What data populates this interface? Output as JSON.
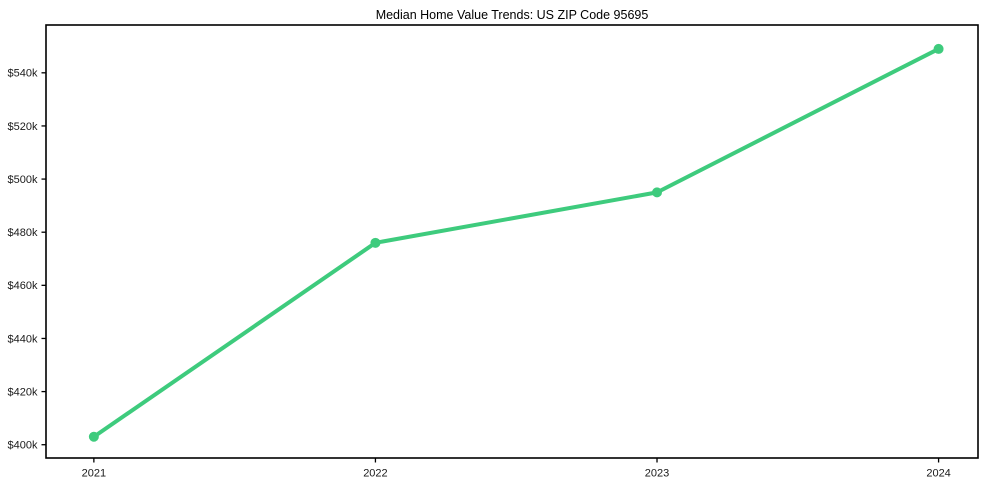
{
  "chart_data": {
    "type": "line",
    "title": "Median Home Value Trends: US ZIP Code 95695",
    "x": [
      2021,
      2022,
      2023,
      2024
    ],
    "xtick_labels": [
      "2021",
      "2022",
      "2023",
      "2024"
    ],
    "series": [
      {
        "name": "median_home_value",
        "values": [
          403000,
          476000,
          495000,
          549000
        ],
        "color": "#3ecb7d"
      }
    ],
    "yticks": [
      400000,
      420000,
      440000,
      460000,
      480000,
      500000,
      520000,
      540000
    ],
    "ytick_labels": [
      "$400k",
      "$420k",
      "$440k",
      "$460k",
      "$480k",
      "$500k",
      "$520k",
      "$540k"
    ],
    "xlim": [
      2020.83,
      2024.14
    ],
    "ylim": [
      395000,
      558000
    ],
    "xlabel": "",
    "ylabel": "",
    "grid": false,
    "legend": "none",
    "background": "#ffffff",
    "axis_color": "#000000",
    "text_color": "#1a1a1a",
    "line_width": 4,
    "marker_radius": 5
  }
}
